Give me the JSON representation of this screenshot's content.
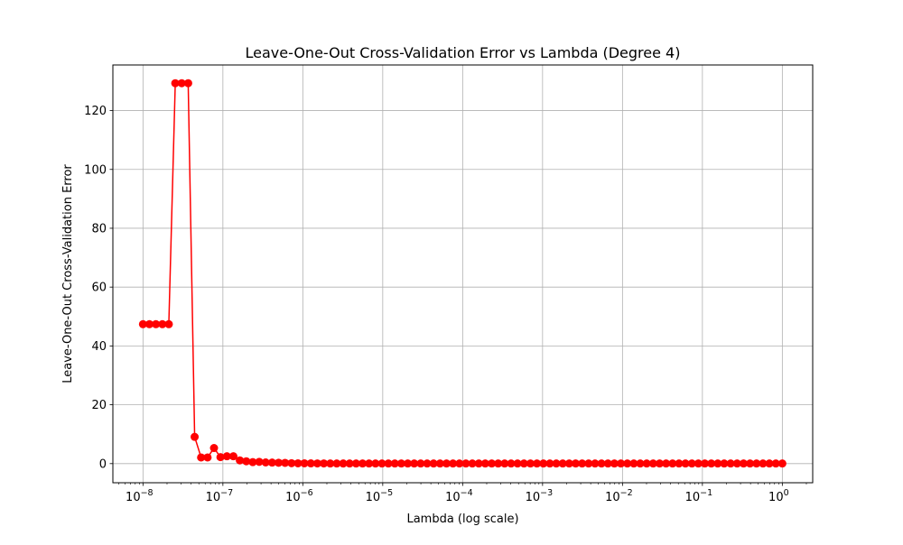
{
  "chart_data": {
    "type": "line",
    "title": "Leave-One-Out Cross-Validation Error vs Lambda (Degree 4)",
    "xlabel": "Lambda (log scale)",
    "ylabel": "Leave-One-Out Cross-Validation Error",
    "x_scale": "log",
    "xlim": [
      4.2e-09,
      2.4
    ],
    "ylim": [
      -6.5,
      135.5
    ],
    "grid": true,
    "x_ticks": [
      {
        "value": 1e-08,
        "base": "10",
        "exp": "−8"
      },
      {
        "value": 1e-07,
        "base": "10",
        "exp": "−7"
      },
      {
        "value": 1e-06,
        "base": "10",
        "exp": "−6"
      },
      {
        "value": 1e-05,
        "base": "10",
        "exp": "−5"
      },
      {
        "value": 0.0001,
        "base": "10",
        "exp": "−4"
      },
      {
        "value": 0.001,
        "base": "10",
        "exp": "−3"
      },
      {
        "value": 0.01,
        "base": "10",
        "exp": "−2"
      },
      {
        "value": 0.1,
        "base": "10",
        "exp": "−1"
      },
      {
        "value": 1,
        "base": "10",
        "exp": "0"
      }
    ],
    "y_ticks": [
      {
        "value": 0,
        "label": "0"
      },
      {
        "value": 20,
        "label": "20"
      },
      {
        "value": 40,
        "label": "40"
      },
      {
        "value": 60,
        "label": "60"
      },
      {
        "value": 80,
        "label": "80"
      },
      {
        "value": 100,
        "label": "100"
      },
      {
        "value": 120,
        "label": "120"
      }
    ],
    "series": [
      {
        "color": "#ff0000",
        "marker": "circle",
        "x": [
          1e-08,
          1.2045e-08,
          1.4508e-08,
          1.7475e-08,
          2.1049e-08,
          2.5354e-08,
          3.0539e-08,
          3.6784e-08,
          4.4306e-08,
          5.3367e-08,
          6.4281e-08,
          7.7426e-08,
          9.326e-08,
          1.1233e-07,
          1.353e-07,
          1.6298e-07,
          1.963e-07,
          2.3645e-07,
          2.848e-07,
          3.4305e-07,
          4.132e-07,
          4.977e-07,
          5.9948e-07,
          7.2208e-07,
          8.6975e-07,
          1.0476e-06,
          1.2619e-06,
          1.5199e-06,
          1.8307e-06,
          2.2051e-06,
          2.6561e-06,
          3.1993e-06,
          3.8535e-06,
          4.6416e-06,
          5.5908e-06,
          6.7342e-06,
          8.1113e-06,
          9.7701e-06,
          1.1768e-05,
          1.4175e-05,
          1.7074e-05,
          2.0565e-05,
          2.4771e-05,
          2.9836e-05,
          3.5938e-05,
          4.3288e-05,
          5.214e-05,
          6.2803e-05,
          7.5646e-05,
          9.1116e-05,
          0.00010975,
          0.00013219,
          0.00015923,
          0.00019179,
          0.00023101,
          0.00027826,
          0.00033516,
          0.0004037,
          0.00048626,
          0.0005857,
          0.00070548,
          0.00084975,
          0.0010235,
          0.0012328,
          0.001485,
          0.0017886,
          0.0021544,
          0.002595,
          0.0031257,
          0.0037649,
          0.0045349,
          0.0054623,
          0.0065793,
          0.0079248,
          0.0095455,
          0.011498,
          0.013849,
          0.016681,
          0.020092,
          0.024201,
          0.029151,
          0.035112,
          0.042292,
          0.050941,
          0.061359,
          0.073907,
          0.089022,
          0.10723,
          0.12915,
          0.15557,
          0.18738,
          0.2257,
          0.27186,
          0.32745,
          0.39442,
          0.47508,
          0.57224,
          0.68926,
          0.83022,
          1.0
        ],
        "y": [
          47.4,
          47.4,
          47.4,
          47.4,
          47.4,
          129.3,
          129.3,
          129.3,
          9.1,
          2.1,
          2.1,
          5.3,
          2.2,
          2.5,
          2.5,
          1.1,
          0.8,
          0.5,
          0.6,
          0.4,
          0.35,
          0.3,
          0.25,
          0.15,
          0.1,
          0.1,
          0.08,
          0.07,
          0.06,
          0.05,
          0.05,
          0.05,
          0.05,
          0.05,
          0.05,
          0.05,
          0.05,
          0.05,
          0.05,
          0.05,
          0.05,
          0.05,
          0.05,
          0.05,
          0.05,
          0.05,
          0.05,
          0.05,
          0.05,
          0.05,
          0.05,
          0.05,
          0.05,
          0.05,
          0.05,
          0.05,
          0.05,
          0.05,
          0.05,
          0.05,
          0.05,
          0.05,
          0.05,
          0.05,
          0.05,
          0.05,
          0.05,
          0.05,
          0.05,
          0.05,
          0.05,
          0.05,
          0.05,
          0.05,
          0.05,
          0.05,
          0.05,
          0.05,
          0.05,
          0.05,
          0.05,
          0.05,
          0.05,
          0.05,
          0.05,
          0.05,
          0.05,
          0.05,
          0.05,
          0.05,
          0.05,
          0.05,
          0.05,
          0.05,
          0.05,
          0.05,
          0.05,
          0.05,
          0.05,
          0.05
        ]
      }
    ]
  }
}
